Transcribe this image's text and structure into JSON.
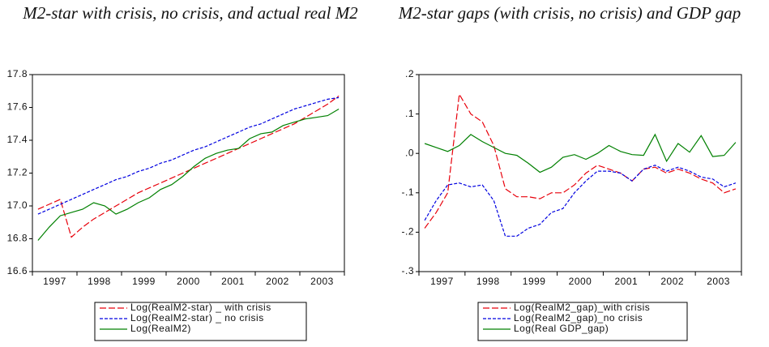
{
  "chart_data": [
    {
      "type": "line",
      "title": "M2-star with crisis, no crisis, and actual real M2",
      "categories": [
        null,
        null,
        "1997",
        null,
        null,
        null,
        "1998",
        null,
        null,
        null,
        "1999",
        null,
        null,
        null,
        "2000",
        null,
        null,
        null,
        "2001",
        null,
        null,
        null,
        "2002",
        null,
        null,
        null,
        "2003",
        null
      ],
      "ylim": [
        16.6,
        17.8
      ],
      "yticks": [
        16.6,
        16.8,
        {
          "value": 17,
          "label": "17.0"
        },
        17.2,
        17.4,
        17.6,
        17.8
      ],
      "series": [
        {
          "name": "Log(RealM2-star) _ with crisis",
          "color": "#e8000b",
          "dash": "8,3",
          "values": [
            16.98,
            17.01,
            17.04,
            16.81,
            16.87,
            16.92,
            16.96,
            17.0,
            17.04,
            17.08,
            17.11,
            17.14,
            17.17,
            17.2,
            17.23,
            17.26,
            17.29,
            17.32,
            17.35,
            17.38,
            17.41,
            17.44,
            17.47,
            17.5,
            17.54,
            17.58,
            17.62,
            17.67
          ]
        },
        {
          "name": "Log(RealM2-star) _ no crisis",
          "color": "#0000e0",
          "dash": "4,2",
          "values": [
            16.95,
            16.98,
            17.01,
            17.04,
            17.07,
            17.1,
            17.13,
            17.16,
            17.18,
            17.21,
            17.23,
            17.26,
            17.28,
            17.31,
            17.34,
            17.36,
            17.39,
            17.42,
            17.45,
            17.48,
            17.5,
            17.53,
            17.56,
            17.59,
            17.61,
            17.63,
            17.65,
            17.66
          ]
        },
        {
          "name": "Log(RealM2)",
          "color": "#008000",
          "dash": "none",
          "values": [
            16.79,
            16.87,
            16.94,
            16.96,
            16.98,
            17.02,
            17.0,
            16.95,
            16.98,
            17.02,
            17.05,
            17.1,
            17.13,
            17.18,
            17.24,
            17.29,
            17.32,
            17.34,
            17.35,
            17.41,
            17.44,
            17.45,
            17.49,
            17.51,
            17.53,
            17.54,
            17.55,
            17.59
          ]
        }
      ]
    },
    {
      "type": "line",
      "title": "M2-star gaps (with crisis, no crisis) and GDP gap",
      "categories": [
        null,
        null,
        "1997",
        null,
        null,
        null,
        "1998",
        null,
        null,
        null,
        "1999",
        null,
        null,
        null,
        "2000",
        null,
        null,
        null,
        "2001",
        null,
        null,
        null,
        "2002",
        null,
        null,
        null,
        "2003",
        null
      ],
      "ylim": [
        -0.3,
        0.2
      ],
      "yticks": [
        {
          "value": -0.3,
          "label": "-.3"
        },
        {
          "value": -0.2,
          "label": "-.2"
        },
        {
          "value": -0.1,
          "label": "-.1"
        },
        {
          "value": 0,
          "label": ".0"
        },
        {
          "value": 0.1,
          "label": ".1"
        },
        {
          "value": 0.2,
          "label": ".2"
        }
      ],
      "series": [
        {
          "name": "Log(RealM2_gap)_with crisis",
          "color": "#e8000b",
          "dash": "8,3",
          "values": [
            -0.19,
            -0.15,
            -0.1,
            0.15,
            0.1,
            0.08,
            0.02,
            -0.09,
            -0.11,
            -0.11,
            -0.115,
            -0.1,
            -0.1,
            -0.08,
            -0.05,
            -0.03,
            -0.04,
            -0.05,
            -0.07,
            -0.04,
            -0.035,
            -0.05,
            -0.04,
            -0.05,
            -0.065,
            -0.075,
            -0.1,
            -0.09
          ]
        },
        {
          "name": "Log(RealM2_gap)_no crisis",
          "color": "#0000e0",
          "dash": "4,2",
          "values": [
            -0.17,
            -0.12,
            -0.08,
            -0.075,
            -0.085,
            -0.08,
            -0.12,
            -0.21,
            -0.21,
            -0.19,
            -0.18,
            -0.15,
            -0.14,
            -0.1,
            -0.07,
            -0.045,
            -0.045,
            -0.05,
            -0.07,
            -0.04,
            -0.03,
            -0.045,
            -0.035,
            -0.045,
            -0.06,
            -0.065,
            -0.085,
            -0.075
          ]
        },
        {
          "name": "Log(Real GDP_gap)",
          "color": "#008000",
          "dash": "none",
          "values": [
            0.025,
            0.015,
            0.005,
            0.02,
            0.048,
            0.03,
            0.015,
            0.0,
            -0.005,
            -0.025,
            -0.048,
            -0.035,
            -0.01,
            -0.003,
            -0.015,
            0.0,
            0.02,
            0.005,
            -0.003,
            -0.005,
            0.048,
            -0.02,
            0.025,
            0.003,
            0.045,
            -0.008,
            -0.005,
            0.028
          ]
        }
      ]
    }
  ]
}
